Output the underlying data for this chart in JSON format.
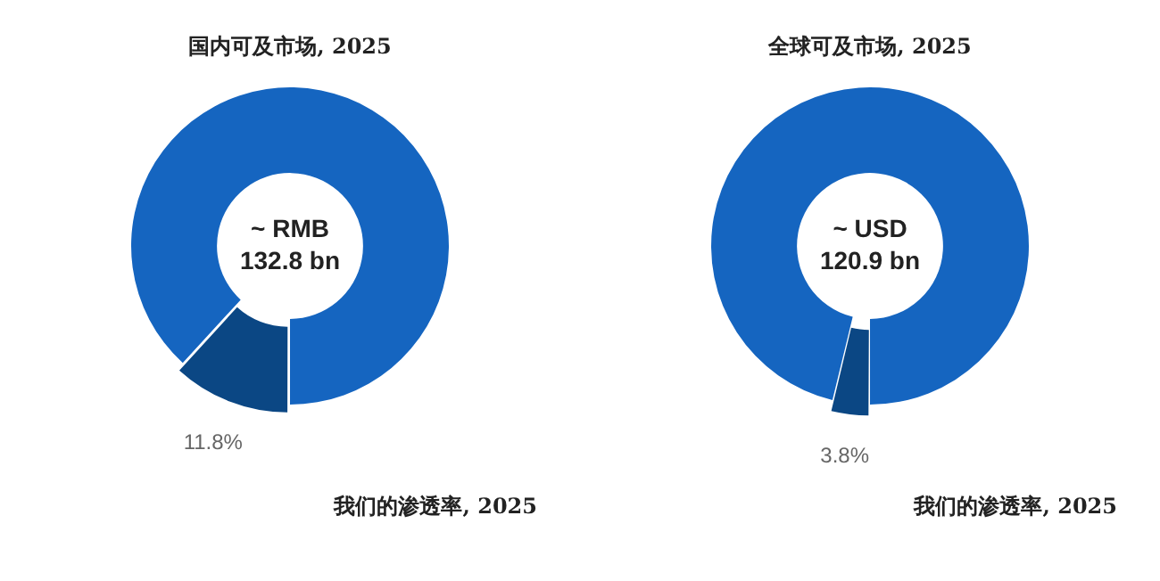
{
  "chart_data": [
    {
      "type": "donut",
      "title": "国内可及市场, 2025",
      "categories": [
        null,
        null
      ],
      "values": [
        11.8,
        88.2
      ],
      "value_labels": [
        "11.8%",
        null
      ],
      "colors": [
        "#0b4784",
        "#1565c0"
      ],
      "annotations": [
        "~ RMB\n132.8 bn",
        "我们的渗透率, 2025"
      ]
    },
    {
      "type": "donut",
      "title": "全球可及市场, 2025",
      "categories": [
        null,
        null
      ],
      "values": [
        3.8,
        96.2
      ],
      "value_labels": [
        "3.8%",
        null
      ],
      "colors": [
        "#0b4784",
        "#1565c0"
      ],
      "annotations": [
        "~ USD\n120.9 bn",
        "我们的渗透率, 2025"
      ]
    }
  ]
}
